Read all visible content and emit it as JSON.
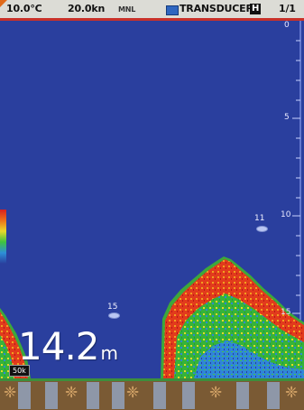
{
  "status_bar": {
    "temperature": "10.0°C",
    "speed": "20.0kn",
    "mode": "MNL",
    "transducer": "TRANSDUCER",
    "h_label": "H",
    "page": "1/1"
  },
  "scale": {
    "0": "0",
    "5": "5",
    "10": "10",
    "15": "15"
  },
  "targets": {
    "a": "11",
    "b": "15"
  },
  "depth": {
    "value": "14.2",
    "unit": "m"
  },
  "frequency": "50k",
  "colors": {
    "water": "#2a3f9e",
    "status_bar": "#dcdcd6",
    "accent_line": "#c8312a"
  }
}
